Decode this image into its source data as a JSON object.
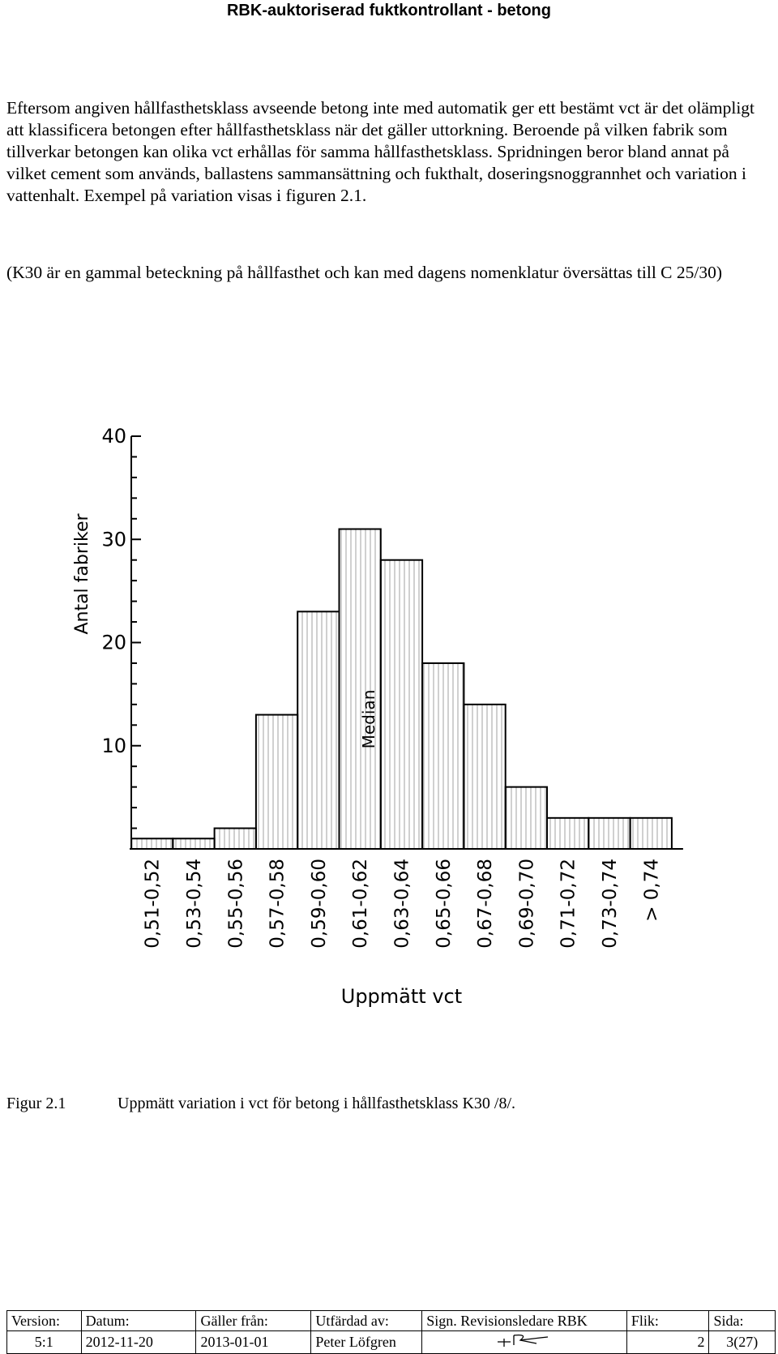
{
  "header": {
    "title": "RBK-auktoriserad fuktkontrollant - betong"
  },
  "body": {
    "paragraph1": "Eftersom angiven hållfasthetsklass avseende betong inte med automatik ger ett bestämt vct är det olämpligt att klassificera betongen efter hållfasthetsklass när det gäller uttorkning. Beroende på vilken fabrik som tillverkar betongen kan olika vct erhållas för samma hållfasthetsklass. Spridningen beror bland annat på vilket cement som används, ballastens sammansättning och fukthalt, doseringsnoggrannhet och variation i vattenhalt. Exempel på variation visas i figuren 2.1.",
    "paragraph2": "(K30 är en gammal beteckning på hållfasthet och kan med dagens nomenklatur översättas till C 25/30)"
  },
  "chart_data": {
    "type": "bar",
    "categories": [
      "0,51-0,52",
      "0,53-0,54",
      "0,55-0,56",
      "0,57-0,58",
      "0,59-0,60",
      "0,61-0,62",
      "0,63-0,64",
      "0,65-0,66",
      "0,67-0,68",
      "0,69-0,70",
      "0,71-0,72",
      "0,73-0,74",
      "> 0,74"
    ],
    "values": [
      1,
      1,
      2,
      13,
      23,
      31,
      28,
      18,
      14,
      6,
      3,
      3,
      3
    ],
    "ylabel": "Antal fabriker",
    "xlabel": "Uppmätt vct",
    "yticks": [
      "10",
      "20",
      "30",
      "40"
    ],
    "ylim": [
      0,
      40
    ],
    "annotation": "Median",
    "grid": false
  },
  "caption": {
    "number": "Figur 2.1",
    "text": "Uppmätt variation i vct för betong i hållfasthetsklass K30  /8/."
  },
  "footer": {
    "labels": [
      "Version:",
      "Datum:",
      "Gäller från:",
      "Utfärdad av:",
      "Sign. Revisionsledare RBK",
      "Flik:",
      "Sida:"
    ],
    "values": [
      "5:1",
      "2012-11-20",
      "2013-01-01",
      "Peter Löfgren",
      "",
      "2",
      "3(27)"
    ]
  }
}
